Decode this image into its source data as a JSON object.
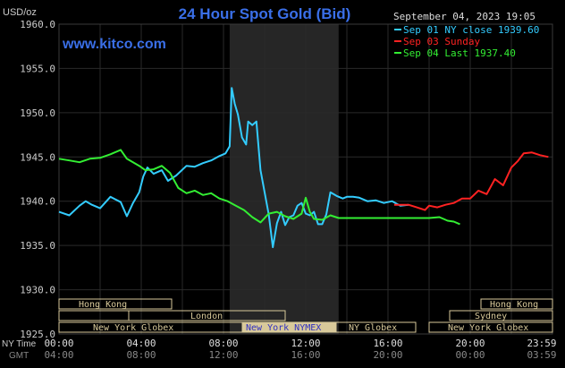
{
  "header": {
    "title": "24 Hour Spot Gold (Bid)",
    "unit": "USD/oz",
    "timestamp": "September 04, 2023 19:05",
    "site": "www.kitco.com"
  },
  "colors": {
    "background": "#000000",
    "grid": "#2a2a2a",
    "title": "#3a6fe8",
    "site": "#3a6fe8",
    "axis_text": "#cccccc",
    "highlight": "#262626",
    "session_bar": "#d8c99a",
    "session_text": "#3030c0"
  },
  "legend": [
    {
      "label": "Sep 01 NY close 1939.60",
      "color": "#33ccff"
    },
    {
      "label": "Sep 03 Sunday",
      "color": "#ff2222"
    },
    {
      "label": "Sep 04 Last 1937.40",
      "color": "#33ee33"
    }
  ],
  "axis_labels": {
    "ny_time": "NY Time",
    "gmt": "GMT"
  },
  "markets": {
    "hong_kong_left": "Hong Kong",
    "london": "London",
    "ny_nymex": "New York NYMEX",
    "ny_globex_1": "New York Globex",
    "ny_globex_2": "NY Globex",
    "hong_kong_right": "Hong Kong",
    "sydney": "Sydney",
    "ny_globex_right": "New York Globex"
  },
  "chart_data": {
    "type": "line",
    "title": "24 Hour Spot Gold (Bid)",
    "ylabel": "USD/oz",
    "ylim": [
      1925,
      1960
    ],
    "y_ticks": [
      "1960.0",
      "1955.0",
      "1950.0",
      "1945.0",
      "1940.0",
      "1935.0",
      "1930.0",
      "1925.0"
    ],
    "xlim": [
      0,
      24
    ],
    "x_ticks": [
      {
        "value": 0,
        "ny": "00:00",
        "gmt": "04:00"
      },
      {
        "value": 4,
        "ny": "04:00",
        "gmt": "08:00"
      },
      {
        "value": 8,
        "ny": "08:00",
        "gmt": "12:00"
      },
      {
        "value": 12,
        "ny": "12:00",
        "gmt": "16:00"
      },
      {
        "value": 16,
        "ny": "16:00",
        "gmt": "20:00"
      },
      {
        "value": 20,
        "ny": "20:00",
        "gmt": "00:00"
      },
      {
        "value": 24,
        "ny": "23:59",
        "gmt": "03:59"
      }
    ],
    "highlight_range": [
      8.3,
      13.6
    ],
    "grid": true,
    "series": [
      {
        "name": "Sep 01 NY close 1939.60",
        "color": "#33ccff",
        "x": [
          0,
          0.5,
          1.0,
          1.3,
          1.6,
          2.0,
          2.5,
          3.0,
          3.3,
          3.6,
          3.9,
          4.1,
          4.3,
          4.6,
          5.0,
          5.3,
          5.7,
          6.2,
          6.6,
          7.0,
          7.4,
          7.8,
          8.1,
          8.3,
          8.4,
          8.55,
          8.7,
          8.9,
          9.1,
          9.2,
          9.4,
          9.6,
          9.8,
          10.0,
          10.2,
          10.4,
          10.6,
          10.8,
          11.0,
          11.2,
          11.4,
          11.6,
          11.8,
          12.0,
          12.2,
          12.4,
          12.6,
          12.8,
          13.0,
          13.2,
          13.5,
          13.8,
          14.0,
          14.3,
          14.6,
          15.0,
          15.4,
          15.8,
          16.2,
          16.6,
          17.0
        ],
        "y": [
          1938.8,
          1938.4,
          1939.5,
          1940.0,
          1939.6,
          1939.2,
          1940.5,
          1939.9,
          1938.3,
          1939.8,
          1941.0,
          1942.8,
          1943.8,
          1943.1,
          1943.5,
          1942.3,
          1942.9,
          1944.0,
          1943.9,
          1944.3,
          1944.6,
          1945.1,
          1945.4,
          1946.2,
          1952.8,
          1951.0,
          1949.8,
          1947.2,
          1946.4,
          1949.0,
          1948.6,
          1949.0,
          1943.5,
          1941.0,
          1938.5,
          1934.8,
          1937.5,
          1938.8,
          1937.3,
          1938.2,
          1938.4,
          1939.5,
          1939.8,
          1938.6,
          1938.4,
          1938.8,
          1937.4,
          1937.4,
          1938.5,
          1941.0,
          1940.6,
          1940.3,
          1940.5,
          1940.5,
          1940.4,
          1940.0,
          1940.1,
          1939.8,
          1940.0,
          1939.5,
          1939.6
        ]
      },
      {
        "name": "Sep 03 Sunday",
        "color": "#ff2222",
        "x": [
          16.3,
          17.0,
          17.4,
          17.8,
          18.0,
          18.4,
          18.8,
          19.2,
          19.6,
          20.0,
          20.4,
          20.8,
          21.2,
          21.6,
          22.0,
          22.3,
          22.6,
          23.0,
          23.4,
          23.8
        ],
        "y": [
          1939.6,
          1939.6,
          1939.3,
          1939.0,
          1939.5,
          1939.3,
          1939.6,
          1939.8,
          1940.3,
          1940.3,
          1941.2,
          1940.8,
          1942.5,
          1941.8,
          1943.8,
          1944.5,
          1945.4,
          1945.5,
          1945.2,
          1945.0
        ]
      },
      {
        "name": "Sep 04 Last 1937.40",
        "color": "#33ee33",
        "x": [
          0,
          0.5,
          1.0,
          1.5,
          2.0,
          2.5,
          3.0,
          3.3,
          3.6,
          3.9,
          4.2,
          4.6,
          5.0,
          5.4,
          5.8,
          6.2,
          6.6,
          7.0,
          7.4,
          7.8,
          8.2,
          8.6,
          9.0,
          9.4,
          9.8,
          10.2,
          10.6,
          11.0,
          11.4,
          11.8,
          12.0,
          12.2,
          12.4,
          12.8,
          13.2,
          13.6,
          14.0,
          14.4,
          15.0,
          16.0,
          17.0,
          18.0,
          18.5,
          18.9,
          19.2,
          19.5
        ],
        "y": [
          1944.8,
          1944.6,
          1944.4,
          1944.8,
          1944.9,
          1945.3,
          1945.8,
          1944.8,
          1944.4,
          1944.0,
          1943.5,
          1943.6,
          1944.0,
          1943.2,
          1941.5,
          1940.9,
          1941.2,
          1940.7,
          1940.9,
          1940.3,
          1940.0,
          1939.5,
          1939.0,
          1938.2,
          1937.6,
          1938.6,
          1938.8,
          1938.3,
          1938.0,
          1938.6,
          1940.4,
          1938.8,
          1938.0,
          1937.9,
          1938.4,
          1938.1,
          1938.1,
          1938.1,
          1938.1,
          1938.1,
          1938.1,
          1938.1,
          1938.2,
          1937.8,
          1937.7,
          1937.4
        ]
      }
    ]
  }
}
